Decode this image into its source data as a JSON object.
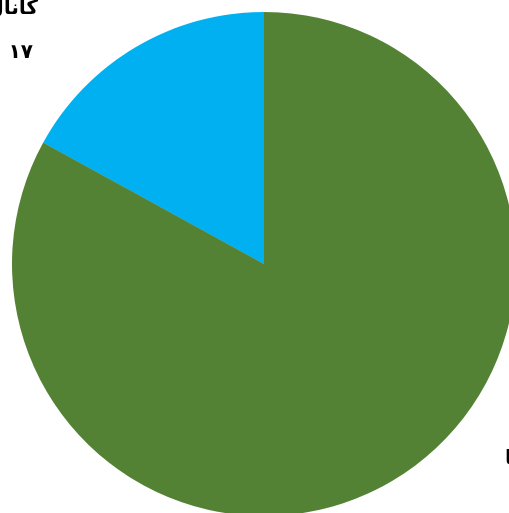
{
  "chart_data": {
    "type": "pie",
    "title": "",
    "slices": [
      {
        "label": "کانال ها",
        "value_label": "۱۷",
        "value": 17,
        "color": "#00B0F0"
      },
      {
        "label": "ها",
        "value_label": "",
        "value": 83,
        "color": "#548235"
      }
    ],
    "start_angle_deg": 0,
    "direction": "counterclockwise",
    "legend": "none"
  }
}
